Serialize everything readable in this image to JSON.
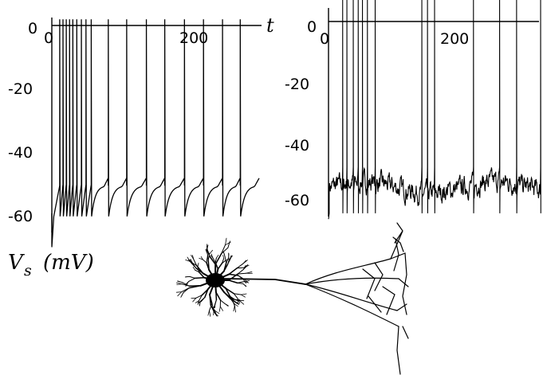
{
  "chart_data": [
    {
      "type": "line",
      "panel": "left",
      "xlabel": "t",
      "xlim": [
        0,
        300
      ],
      "ylim": [
        -64,
        2
      ],
      "xticks": [
        0,
        200
      ],
      "yticks": [
        0,
        -20,
        -40,
        -60
      ],
      "spike_times": [
        12,
        17,
        22,
        27,
        32,
        38,
        45,
        52,
        60,
        86,
        114,
        144,
        172,
        202,
        231,
        260,
        287,
        316
      ],
      "resting_potential": -62,
      "plateau_after_spike": -52
    },
    {
      "type": "line",
      "panel": "right",
      "xlim": [
        0,
        300
      ],
      "ylim": [
        -68,
        6
      ],
      "xticks": [
        0,
        200
      ],
      "yticks": [
        0,
        -20,
        -40,
        -60
      ],
      "spike_times": [
        20,
        26,
        35,
        42,
        48,
        55,
        66,
        132,
        140,
        150,
        205,
        242,
        266,
        300
      ],
      "mean_potential": -57,
      "noise_amplitude": 5
    }
  ],
  "axis_label": {
    "symbol": "V",
    "subscript": "s",
    "unit": "(mV)"
  }
}
